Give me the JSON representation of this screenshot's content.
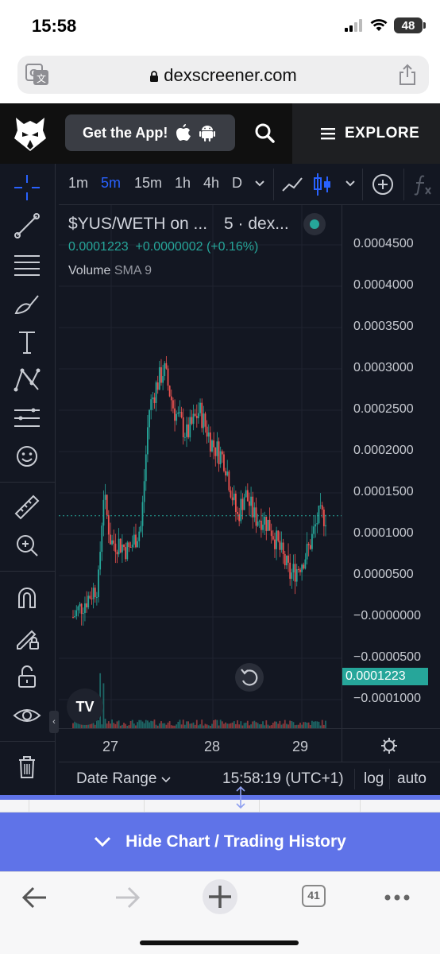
{
  "status_bar": {
    "time": "15:58",
    "battery": "48"
  },
  "browser": {
    "url": "dexscreener.com"
  },
  "header": {
    "get_app_label": "Get the App!",
    "explore_label": "EXPLORE"
  },
  "toolbar": {
    "timeframes": [
      "1m",
      "5m",
      "15m",
      "1h",
      "4h",
      "D"
    ],
    "active_timeframe": "5m"
  },
  "chart": {
    "pair_title": "$YUS/WETH on ...",
    "interval_source": "5 · dex...",
    "price": "0.0001223",
    "change": "+0.0000002 (+0.16%)",
    "volume_label": "Volume",
    "volume_sma": "SMA 9",
    "current_price_tag": "0.0001223",
    "price_axis": [
      "0.0004500",
      "0.0004000",
      "0.0003500",
      "0.0003000",
      "0.0002500",
      "0.0002000",
      "0.0001500",
      "0.0001000",
      "0.0000500",
      "−0.0000000",
      "−0.0000500",
      "−0.0001000"
    ],
    "time_axis": [
      "27",
      "28",
      "29"
    ],
    "tv_logo": "TV",
    "colors": {
      "up": "#26a69a",
      "down": "#ef5350",
      "accent": "#2962ff"
    }
  },
  "chart_data": {
    "type": "line",
    "title": "$YUS/WETH",
    "x_ticks": [
      "27",
      "28",
      "29"
    ],
    "ylim": [
      -0.0001,
      0.00045
    ],
    "x": [
      0,
      0.05,
      0.1,
      0.12,
      0.15,
      0.18,
      0.22,
      0.27,
      0.3,
      0.33,
      0.36,
      0.4,
      0.45,
      0.5,
      0.55,
      0.6,
      0.65,
      0.68,
      0.72,
      0.75,
      0.78,
      0.82,
      0.86,
      0.89,
      0.93,
      0.97,
      1.0
    ],
    "series": [
      {
        "values": [
          0.0,
          2e-05,
          4e-05,
          0.00015,
          9e-05,
          9e-05,
          8e-05,
          0.00011,
          0.00025,
          0.00028,
          0.0003,
          0.00025,
          0.00022,
          0.00025,
          0.00021,
          0.00019,
          0.00012,
          0.00015,
          0.00012,
          0.00012,
          0.00011,
          8e-05,
          5e-05,
          6e-05,
          8e-05,
          0.00012,
          0.0001223
        ]
      }
    ]
  },
  "bottom_bar": {
    "date_range": "Date Range",
    "clock": "15:58:19 (UTC+1)",
    "log": "log",
    "auto": "auto"
  },
  "history": {
    "hide_label": "Hide Chart / Trading History"
  },
  "safari": {
    "tabs_count": "41"
  }
}
